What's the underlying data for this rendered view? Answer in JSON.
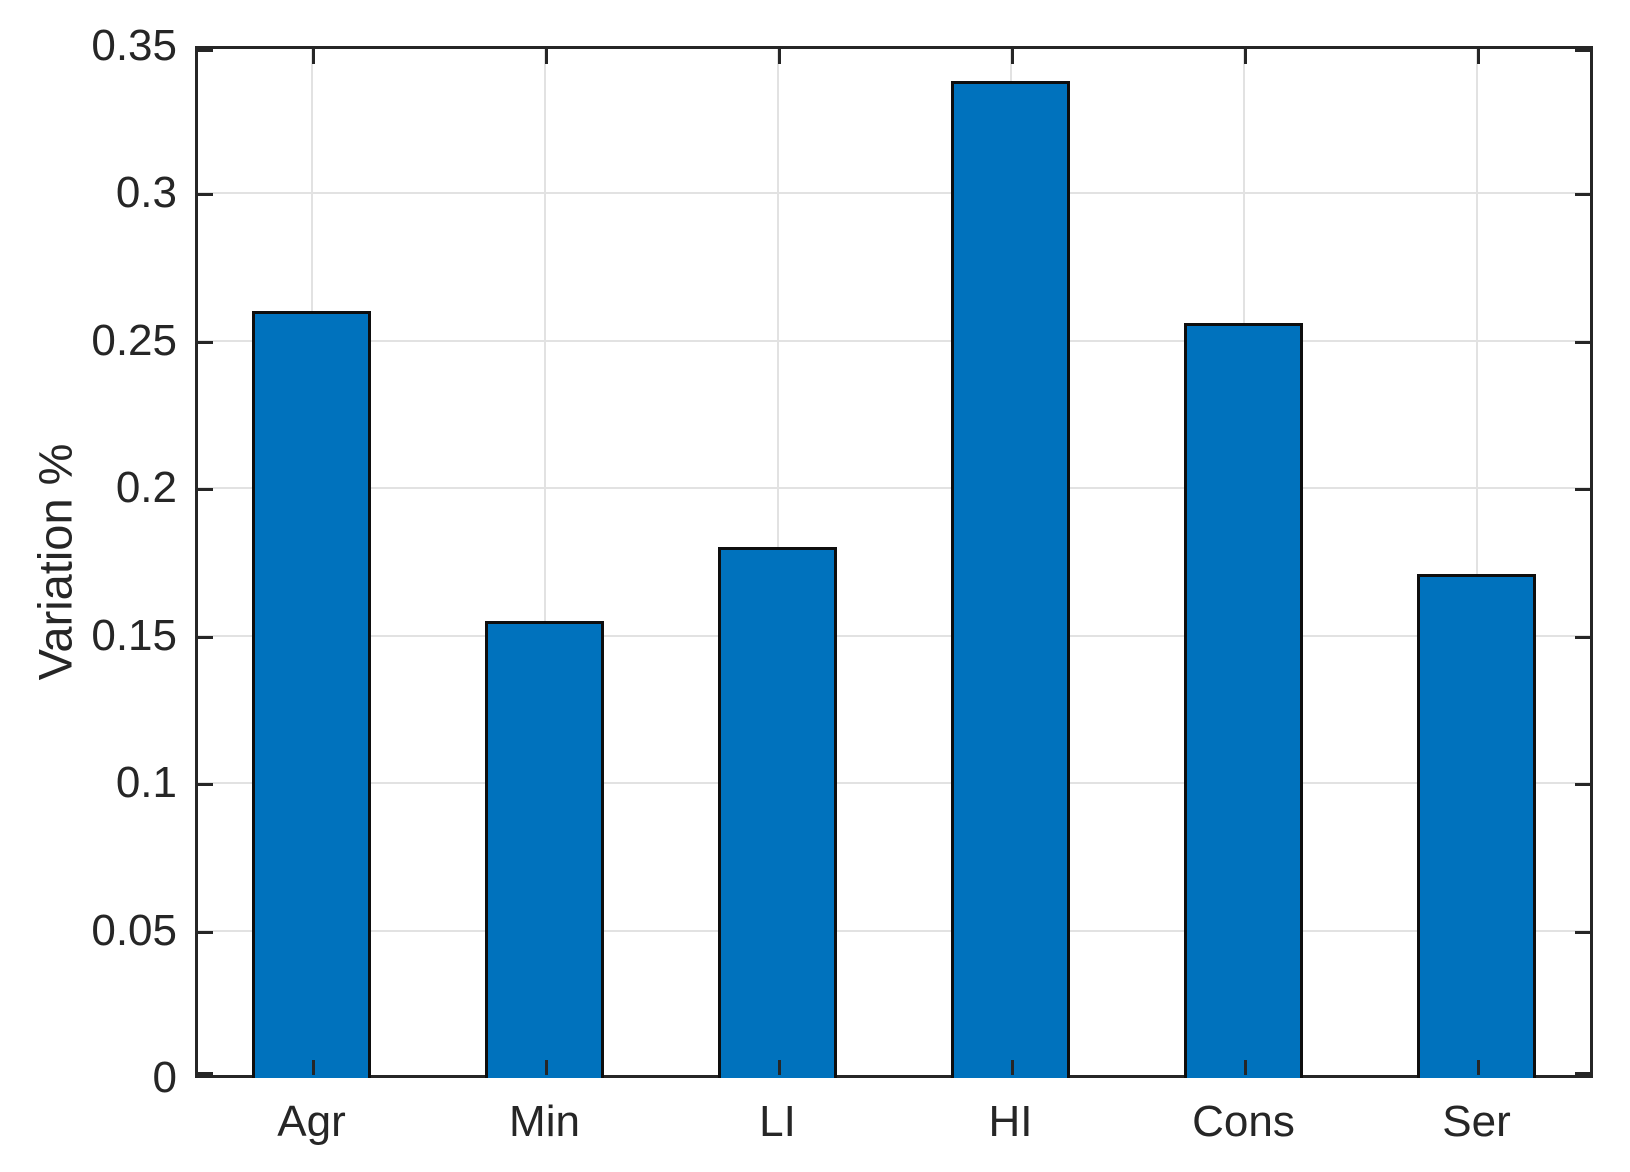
{
  "chart_data": {
    "type": "bar",
    "categories": [
      "Agr",
      "Min",
      "LI",
      "HI",
      "Cons",
      "Ser"
    ],
    "values": [
      0.26,
      0.155,
      0.18,
      0.338,
      0.256,
      0.171
    ],
    "title": "",
    "xlabel": "",
    "ylabel": "Variation %",
    "ylim": [
      0,
      0.35
    ],
    "ytick_values": [
      0,
      0.05,
      0.1,
      0.15,
      0.2,
      0.25,
      0.3,
      0.35
    ],
    "ytick_labels": [
      "0",
      "0.05",
      "0.1",
      "0.15",
      "0.2",
      "0.25",
      "0.3",
      "0.35"
    ],
    "grid": true,
    "legend": "none",
    "tick_direction": "in",
    "box": true,
    "bar_width_fraction": 0.51,
    "colors": {
      "bar_fill": "#0072BD",
      "bar_edge": "#0e0e0e",
      "axis": "#262626",
      "grid": "#e2e2e2",
      "text": "#262626",
      "background": "#ffffff"
    }
  }
}
